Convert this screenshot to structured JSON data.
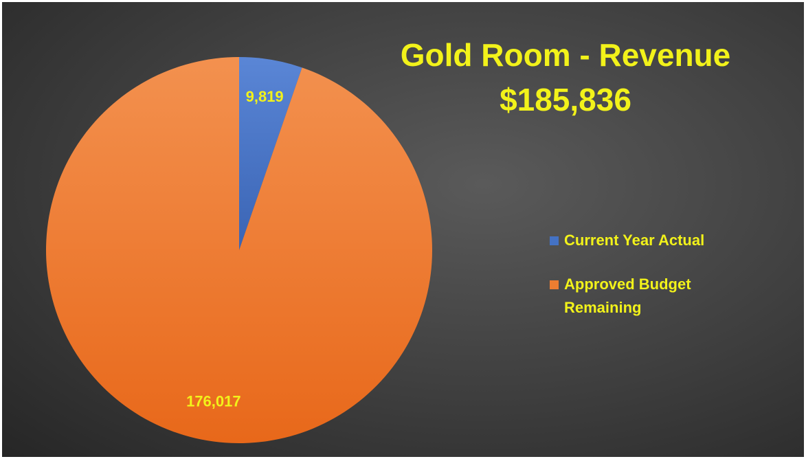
{
  "chart_data": {
    "type": "pie",
    "title": "Gold Room - Revenue",
    "subtitle": "$185,836",
    "categories": [
      "Current Year Actual",
      "Approved Budget Remaining"
    ],
    "values": [
      9819,
      176017
    ],
    "value_labels": [
      "9,819",
      "176,017"
    ],
    "colors": [
      "#4472c4",
      "#ed7d31"
    ],
    "legend": "right"
  }
}
